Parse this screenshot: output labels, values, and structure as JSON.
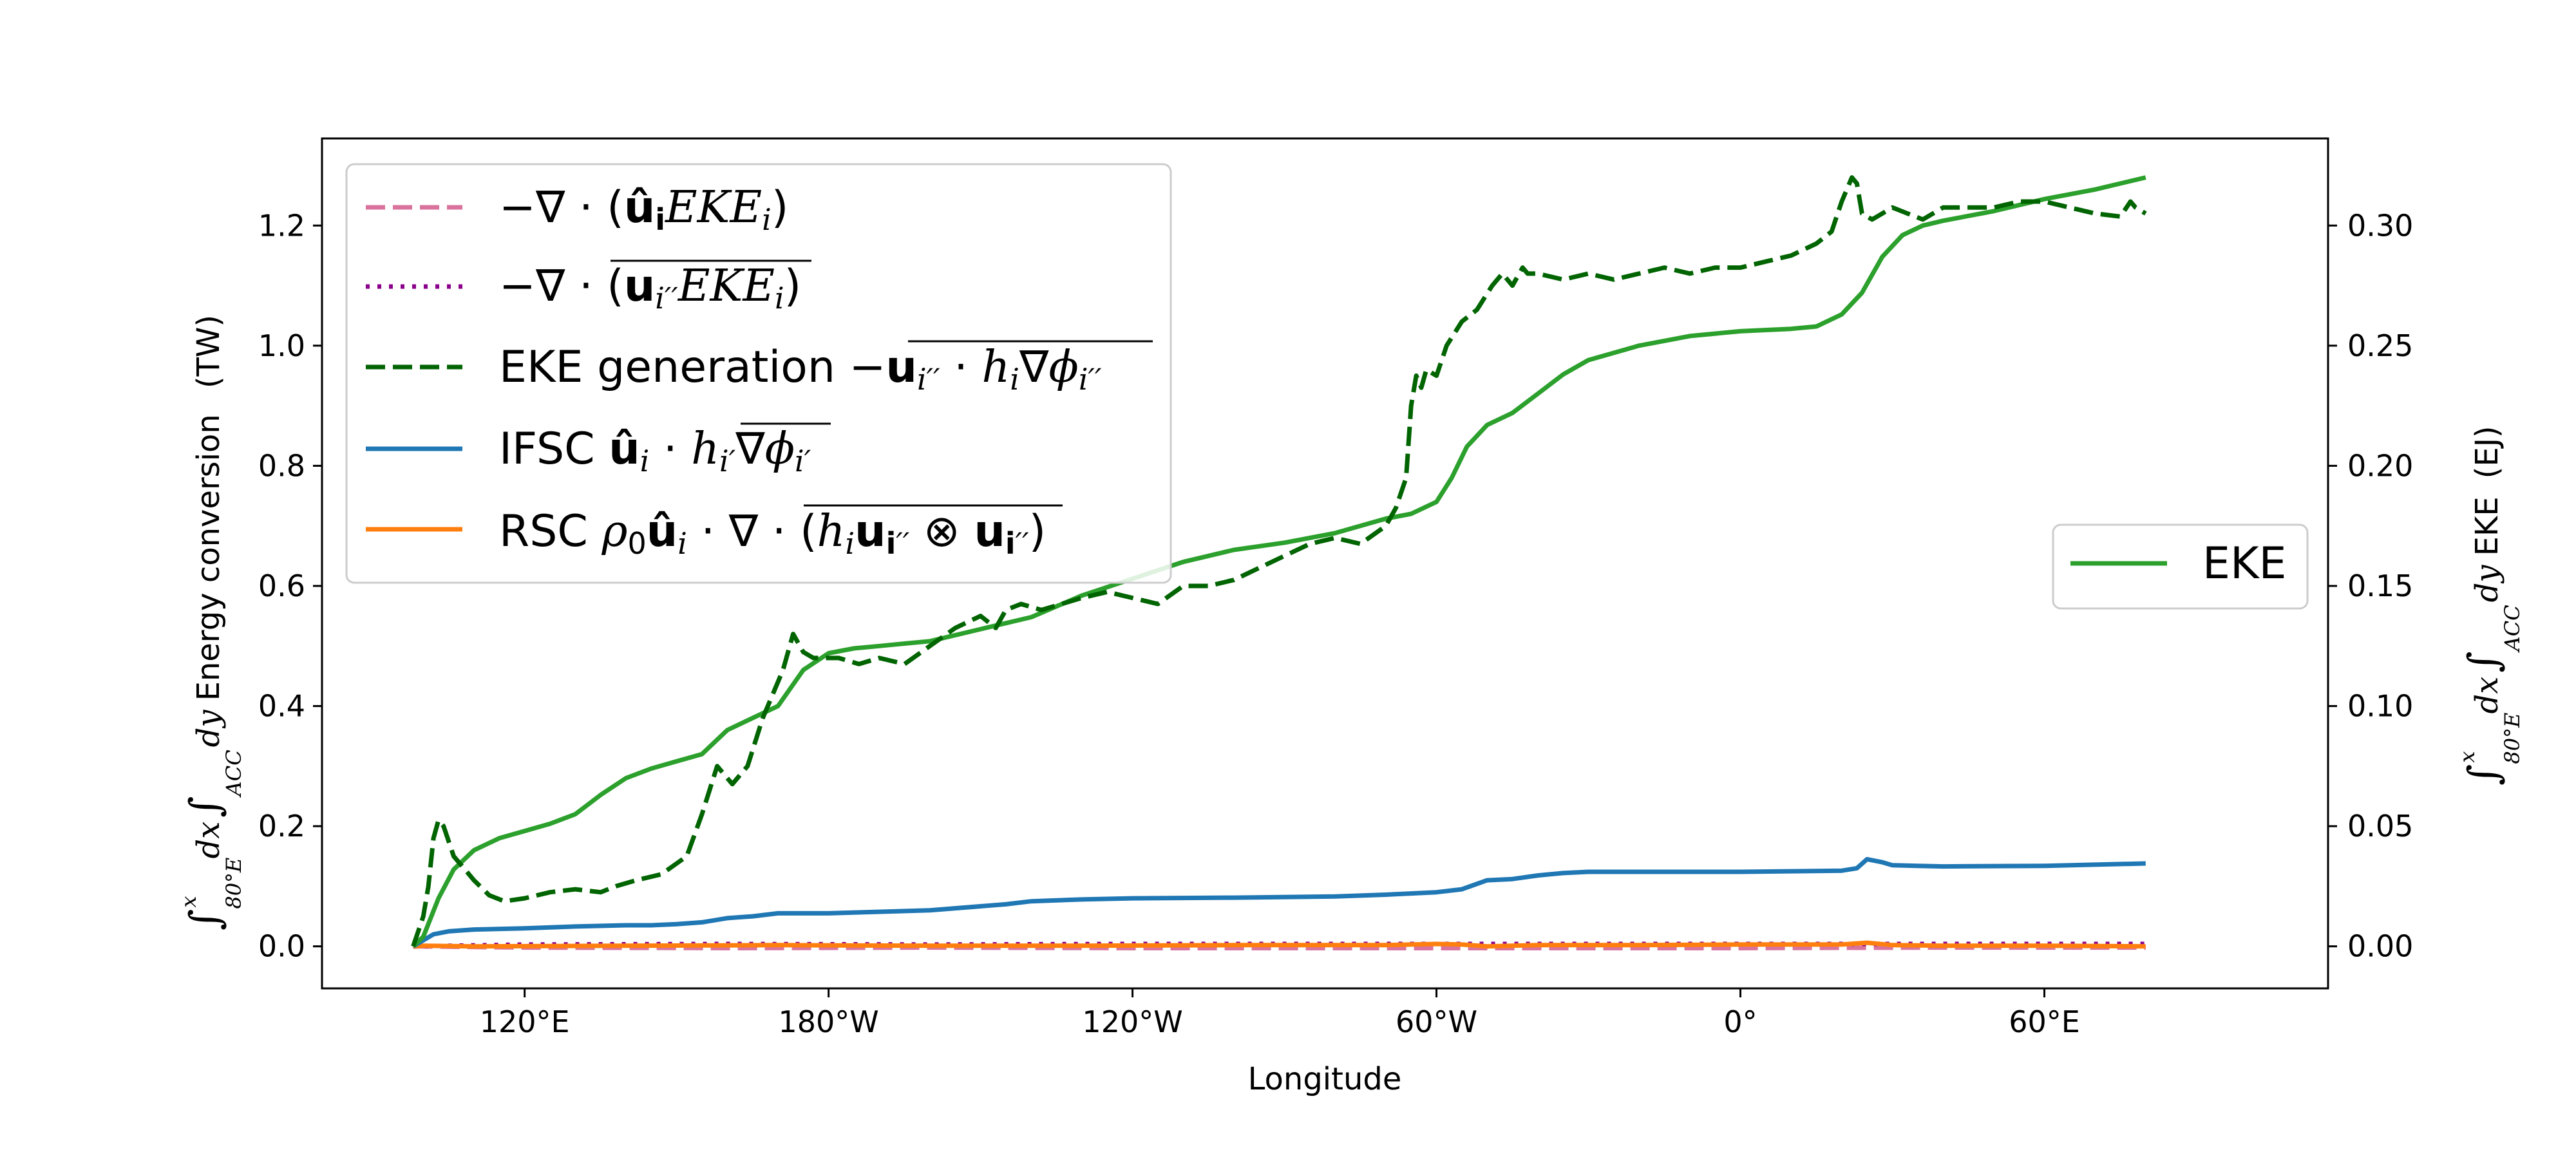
{
  "chart_data": {
    "type": "line",
    "xlabel": "Longitude",
    "ylabel_left": "∫x80°E dx ∫ACC dy Energy conversion (TW)",
    "ylabel_right": "∫x80°E dx ∫ACC dy EKE (EJ)",
    "x_ticks": [
      {
        "value": 120,
        "label": "120°E"
      },
      {
        "value": 180,
        "label": "180°W"
      },
      {
        "value": 240,
        "label": "120°W"
      },
      {
        "value": 300,
        "label": "60°W"
      },
      {
        "value": 360,
        "label": "0°"
      },
      {
        "value": 420,
        "label": "60°E"
      }
    ],
    "xlim": [
      80,
      476
    ],
    "ylim_left": [
      -0.07,
      1.345
    ],
    "ylim_right": [
      -0.0175,
      0.33625
    ],
    "y_ticks_left": [
      "0.0",
      "0.2",
      "0.4",
      "0.6",
      "0.8",
      "1.0",
      "1.2"
    ],
    "y_ticks_right": [
      "0.00",
      "0.05",
      "0.10",
      "0.15",
      "0.20",
      "0.25",
      "0.30"
    ],
    "legend_left": [
      {
        "key": "adv_mean",
        "color": "#d9739e",
        "dash": "dashed"
      },
      {
        "key": "adv_eddy",
        "color": "#8b008b",
        "dash": "dotted"
      },
      {
        "key": "eke_gen",
        "color": "#006400",
        "dash": "dashed"
      },
      {
        "key": "ifsc",
        "color": "#1f77b4",
        "dash": "solid"
      },
      {
        "key": "rsc",
        "color": "#ff7f0e",
        "dash": "solid"
      }
    ],
    "legend_right": [
      {
        "key": "eke",
        "label": "EKE",
        "color": "#2ca02c",
        "dash": "solid"
      }
    ],
    "series": [
      {
        "key": "eke_gen",
        "axis": "left",
        "x": [
          98,
          100,
          101,
          102,
          103,
          104,
          106,
          108,
          110,
          113,
          116,
          120,
          125,
          130,
          135,
          138,
          142,
          147,
          152,
          155,
          158,
          161,
          164,
          167,
          169,
          171,
          173,
          175,
          177,
          179,
          182,
          186,
          190,
          195,
          200,
          205,
          210,
          213,
          215,
          218,
          222,
          226,
          230,
          235,
          240,
          245,
          250,
          255,
          260,
          265,
          270,
          275,
          280,
          285,
          290,
          292,
          294,
          295,
          296,
          297,
          298,
          300,
          302,
          305,
          308,
          311,
          313,
          315,
          317,
          318,
          320,
          325,
          330,
          335,
          340,
          345,
          350,
          355,
          360,
          365,
          370,
          375,
          378,
          380,
          381,
          382,
          383,
          384,
          386,
          390,
          393,
          396,
          400,
          405,
          410,
          415,
          420,
          425,
          430,
          435,
          437,
          438,
          440
        ],
        "y": [
          0.0,
          0.05,
          0.1,
          0.18,
          0.21,
          0.2,
          0.15,
          0.13,
          0.11,
          0.085,
          0.075,
          0.08,
          0.09,
          0.095,
          0.09,
          0.1,
          0.11,
          0.12,
          0.15,
          0.22,
          0.3,
          0.27,
          0.3,
          0.38,
          0.42,
          0.46,
          0.52,
          0.49,
          0.48,
          0.48,
          0.48,
          0.47,
          0.48,
          0.47,
          0.5,
          0.53,
          0.55,
          0.53,
          0.56,
          0.57,
          0.56,
          0.57,
          0.58,
          0.59,
          0.58,
          0.57,
          0.6,
          0.6,
          0.61,
          0.63,
          0.65,
          0.67,
          0.68,
          0.67,
          0.7,
          0.73,
          0.78,
          0.9,
          0.95,
          0.93,
          0.96,
          0.95,
          1.0,
          1.04,
          1.06,
          1.1,
          1.12,
          1.1,
          1.13,
          1.12,
          1.12,
          1.11,
          1.12,
          1.11,
          1.12,
          1.13,
          1.12,
          1.13,
          1.13,
          1.14,
          1.15,
          1.17,
          1.19,
          1.24,
          1.26,
          1.28,
          1.27,
          1.22,
          1.21,
          1.23,
          1.22,
          1.21,
          1.23,
          1.23,
          1.23,
          1.24,
          1.24,
          1.23,
          1.22,
          1.215,
          1.24,
          1.23,
          1.22
        ]
      },
      {
        "key": "ifsc",
        "axis": "left",
        "x": [
          98,
          100,
          102,
          105,
          110,
          120,
          130,
          140,
          145,
          150,
          155,
          160,
          165,
          170,
          180,
          200,
          215,
          220,
          230,
          240,
          260,
          280,
          290,
          300,
          305,
          310,
          315,
          320,
          325,
          330,
          340,
          360,
          370,
          380,
          383,
          385,
          388,
          390,
          395,
          400,
          420,
          440
        ],
        "y": [
          0.0,
          0.01,
          0.02,
          0.025,
          0.028,
          0.03,
          0.033,
          0.035,
          0.035,
          0.037,
          0.04,
          0.047,
          0.05,
          0.055,
          0.055,
          0.06,
          0.07,
          0.075,
          0.078,
          0.08,
          0.081,
          0.083,
          0.086,
          0.09,
          0.095,
          0.11,
          0.112,
          0.118,
          0.122,
          0.124,
          0.124,
          0.124,
          0.125,
          0.126,
          0.13,
          0.145,
          0.14,
          0.135,
          0.134,
          0.133,
          0.134,
          0.138
        ]
      },
      {
        "key": "rsc",
        "axis": "left",
        "x": [
          98,
          100,
          110,
          140,
          170,
          200,
          230,
          260,
          290,
          300,
          305,
          310,
          320,
          340,
          360,
          380,
          385,
          390,
          400,
          420,
          440
        ],
        "y": [
          0.0,
          0.001,
          0.0,
          0.001,
          0.002,
          0.001,
          0.001,
          0.002,
          0.002,
          0.004,
          0.003,
          0.0,
          0.002,
          0.002,
          0.003,
          0.003,
          0.006,
          0.002,
          0.001,
          0.001,
          0.0
        ]
      },
      {
        "key": "adv_mean",
        "axis": "left",
        "x": [
          98,
          120,
          160,
          200,
          240,
          280,
          320,
          360,
          400,
          440
        ],
        "y": [
          0.0,
          -0.002,
          -0.003,
          -0.002,
          -0.003,
          -0.003,
          -0.003,
          -0.003,
          -0.002,
          -0.002
        ]
      },
      {
        "key": "adv_eddy",
        "axis": "left",
        "x": [
          98,
          120,
          160,
          200,
          240,
          280,
          320,
          360,
          400,
          440
        ],
        "y": [
          0.0,
          0.003,
          0.004,
          0.003,
          0.004,
          0.004,
          0.004,
          0.004,
          0.004,
          0.004
        ]
      },
      {
        "key": "eke",
        "axis": "right",
        "x": [
          98,
          100,
          103,
          106,
          110,
          115,
          120,
          125,
          130,
          135,
          140,
          145,
          150,
          155,
          160,
          165,
          170,
          175,
          180,
          185,
          190,
          195,
          200,
          210,
          220,
          230,
          240,
          250,
          260,
          270,
          280,
          290,
          295,
          300,
          303,
          306,
          310,
          315,
          320,
          325,
          330,
          340,
          350,
          360,
          370,
          375,
          380,
          384,
          388,
          392,
          396,
          400,
          410,
          420,
          430,
          440
        ],
        "y": [
          0.0,
          0.004,
          0.02,
          0.032,
          0.04,
          0.045,
          0.048,
          0.051,
          0.055,
          0.063,
          0.07,
          0.074,
          0.077,
          0.08,
          0.09,
          0.095,
          0.1,
          0.115,
          0.122,
          0.124,
          0.125,
          0.126,
          0.127,
          0.132,
          0.137,
          0.146,
          0.153,
          0.16,
          0.165,
          0.168,
          0.172,
          0.178,
          0.18,
          0.185,
          0.195,
          0.208,
          0.217,
          0.222,
          0.23,
          0.238,
          0.244,
          0.25,
          0.254,
          0.256,
          0.257,
          0.258,
          0.263,
          0.272,
          0.287,
          0.296,
          0.3,
          0.302,
          0.306,
          0.311,
          0.315,
          0.32
        ]
      }
    ]
  }
}
